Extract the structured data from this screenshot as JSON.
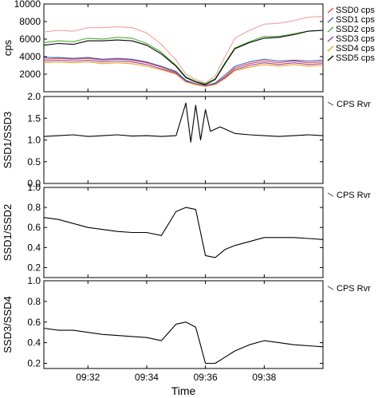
{
  "chart_data": [
    {
      "type": "line",
      "ylabel": "cps",
      "ylim": [
        0,
        10000
      ],
      "yticks": [
        "2000",
        "4000",
        "6000",
        "8000",
        "10000"
      ],
      "xlim": [
        "09:30:30",
        "09:40:00"
      ],
      "grid": false,
      "legend_position": "right",
      "series": [
        {
          "name": "SSD0 cps",
          "color": "#e8453c",
          "x": [
            "09:30:30",
            "09:31:00",
            "09:31:30",
            "09:32:00",
            "09:32:30",
            "09:33:00",
            "09:33:30",
            "09:34:00",
            "09:34:30",
            "09:35:00",
            "09:35:20",
            "09:35:40",
            "09:36:00",
            "09:36:20",
            "09:36:40",
            "09:37:00",
            "09:37:30",
            "09:38:00",
            "09:38:30",
            "09:39:00",
            "09:39:30",
            "09:40:00"
          ],
          "values": [
            3700,
            3800,
            3700,
            3800,
            3600,
            3700,
            3600,
            3300,
            2800,
            2200,
            1200,
            800,
            700,
            900,
            1700,
            2700,
            3200,
            3500,
            3300,
            3500,
            3300,
            3400
          ]
        },
        {
          "name": "SSD1 cps",
          "color": "#3a5fcd",
          "x": [
            "09:30:30",
            "09:31:00",
            "09:31:30",
            "09:32:00",
            "09:32:30",
            "09:33:00",
            "09:33:30",
            "09:34:00",
            "09:34:30",
            "09:35:00",
            "09:35:20",
            "09:35:40",
            "09:36:00",
            "09:36:20",
            "09:36:40",
            "09:37:00",
            "09:37:30",
            "09:38:00",
            "09:38:30",
            "09:39:00",
            "09:39:30",
            "09:40:00"
          ],
          "values": [
            3900,
            3900,
            3800,
            3900,
            3700,
            3800,
            3700,
            3400,
            2900,
            2300,
            1300,
            900,
            700,
            1000,
            1900,
            2900,
            3400,
            3700,
            3500,
            3600,
            3500,
            3600
          ]
        },
        {
          "name": "SSD2 cps",
          "color": "#4caf32",
          "x": [
            "09:30:30",
            "09:31:00",
            "09:31:30",
            "09:32:00",
            "09:32:30",
            "09:33:00",
            "09:33:30",
            "09:34:00",
            "09:34:30",
            "09:35:00",
            "09:35:20",
            "09:35:40",
            "09:36:00",
            "09:36:20",
            "09:36:40",
            "09:37:00",
            "09:37:30",
            "09:38:00",
            "09:38:30",
            "09:39:00",
            "09:39:30",
            "09:40:00"
          ],
          "values": [
            5600,
            5800,
            5700,
            6100,
            6000,
            6200,
            6100,
            5500,
            4500,
            3000,
            1700,
            1200,
            900,
            1500,
            3300,
            5000,
            5700,
            6300,
            6300,
            6600,
            6900,
            7000
          ]
        },
        {
          "name": "SSD3 cps",
          "color": "#8e44ad",
          "x": [
            "09:30:30",
            "09:31:00",
            "09:31:30",
            "09:32:00",
            "09:32:30",
            "09:33:00",
            "09:33:30",
            "09:34:00",
            "09:34:30",
            "09:35:00",
            "09:35:20",
            "09:35:40",
            "09:36:00",
            "09:36:20",
            "09:36:40",
            "09:37:00",
            "09:37:30",
            "09:38:00",
            "09:38:30",
            "09:39:00",
            "09:39:30",
            "09:40:00"
          ],
          "values": [
            3500,
            3600,
            3500,
            3600,
            3400,
            3500,
            3400,
            3100,
            2600,
            2100,
            1200,
            900,
            700,
            900,
            1600,
            2500,
            3000,
            3300,
            3100,
            3300,
            3100,
            3200
          ]
        },
        {
          "name": "SSD4 cps",
          "color": "#f0a020",
          "x": [
            "09:30:30",
            "09:31:00",
            "09:31:30",
            "09:32:00",
            "09:32:30",
            "09:33:00",
            "09:33:30",
            "09:34:00",
            "09:34:30",
            "09:35:00",
            "09:35:20",
            "09:35:40",
            "09:36:00",
            "09:36:20",
            "09:36:40",
            "09:37:00",
            "09:37:30",
            "09:38:00",
            "09:38:30",
            "09:39:00",
            "09:39:30",
            "09:40:00"
          ],
          "values": [
            3300,
            3400,
            3300,
            3400,
            3200,
            3300,
            3200,
            2900,
            2500,
            2000,
            1100,
            800,
            600,
            800,
            1500,
            2400,
            2800,
            3100,
            2900,
            3100,
            2900,
            3000
          ]
        },
        {
          "name": "SSD5 cps",
          "color": "#000000",
          "x": [
            "09:30:30",
            "09:31:00",
            "09:31:30",
            "09:32:00",
            "09:32:30",
            "09:33:00",
            "09:33:30",
            "09:34:00",
            "09:34:30",
            "09:35:00",
            "09:35:20",
            "09:35:40",
            "09:36:00",
            "09:36:20",
            "09:36:40",
            "09:37:00",
            "09:37:30",
            "09:38:00",
            "09:38:30",
            "09:39:00",
            "09:39:30",
            "09:40:00"
          ],
          "values": [
            5300,
            5500,
            5400,
            5800,
            5800,
            5900,
            5800,
            5300,
            4300,
            2900,
            1600,
            1100,
            800,
            1400,
            3200,
            4900,
            5600,
            6100,
            6200,
            6500,
            6900,
            7000
          ]
        },
        {
          "name": "",
          "color": "#f4a0a0",
          "x": [
            "09:30:30",
            "09:31:00",
            "09:31:30",
            "09:32:00",
            "09:32:30",
            "09:33:00",
            "09:33:30",
            "09:34:00",
            "09:34:30",
            "09:35:00",
            "09:35:20",
            "09:35:40",
            "09:36:00",
            "09:36:20",
            "09:36:40",
            "09:37:00",
            "09:37:30",
            "09:38:00",
            "09:38:30",
            "09:39:00",
            "09:39:30",
            "09:40:00"
          ],
          "values": [
            6800,
            7000,
            6900,
            7300,
            7300,
            7400,
            7300,
            6700,
            5400,
            3600,
            2000,
            1400,
            1000,
            1800,
            4000,
            6100,
            7000,
            7700,
            7800,
            8100,
            8500,
            8600
          ]
        }
      ]
    },
    {
      "type": "line",
      "ylabel": "SSD1/SSD3",
      "ylim": [
        0,
        2.0
      ],
      "yticks": [
        "0.0",
        "0.5",
        "1.0",
        "1.5",
        "2.0"
      ],
      "xlim": [
        "09:30:30",
        "09:40:00"
      ],
      "legend_position": "right",
      "series": [
        {
          "name": "CPS Rvr",
          "color": "#000000",
          "x": [
            "09:30:30",
            "09:31:00",
            "09:31:30",
            "09:32:00",
            "09:32:30",
            "09:33:00",
            "09:33:30",
            "09:34:00",
            "09:34:30",
            "09:35:00",
            "09:35:20",
            "09:35:30",
            "09:35:40",
            "09:35:50",
            "09:36:00",
            "09:36:10",
            "09:36:30",
            "09:37:00",
            "09:37:30",
            "09:38:00",
            "09:38:30",
            "09:39:00",
            "09:39:30",
            "09:40:00"
          ],
          "values": [
            1.08,
            1.1,
            1.12,
            1.08,
            1.1,
            1.12,
            1.09,
            1.1,
            1.08,
            1.1,
            1.85,
            0.95,
            1.8,
            1.0,
            1.7,
            1.2,
            1.3,
            1.15,
            1.12,
            1.1,
            1.08,
            1.1,
            1.12,
            1.1
          ]
        }
      ]
    },
    {
      "type": "line",
      "ylabel": "SSD1/SSD2",
      "ylim": [
        0.1,
        1.0
      ],
      "yticks": [
        "0.2",
        "0.4",
        "0.6",
        "0.8",
        "1.0"
      ],
      "xlim": [
        "09:30:30",
        "09:40:00"
      ],
      "legend_position": "right",
      "series": [
        {
          "name": "CPS Rvr",
          "color": "#000000",
          "x": [
            "09:30:30",
            "09:31:00",
            "09:31:30",
            "09:32:00",
            "09:32:30",
            "09:33:00",
            "09:33:30",
            "09:34:00",
            "09:34:30",
            "09:35:00",
            "09:35:20",
            "09:35:40",
            "09:36:00",
            "09:36:20",
            "09:36:40",
            "09:37:00",
            "09:37:30",
            "09:38:00",
            "09:38:30",
            "09:39:00",
            "09:39:30",
            "09:40:00"
          ],
          "values": [
            0.7,
            0.68,
            0.64,
            0.6,
            0.58,
            0.56,
            0.55,
            0.55,
            0.52,
            0.76,
            0.8,
            0.78,
            0.32,
            0.3,
            0.38,
            0.42,
            0.46,
            0.5,
            0.5,
            0.5,
            0.49,
            0.48
          ]
        }
      ]
    },
    {
      "type": "line",
      "ylabel": "SSD3/SSD4",
      "ylim": [
        0.15,
        1.0
      ],
      "yticks": [
        "0.2",
        "0.4",
        "0.6",
        "0.8",
        "1.0"
      ],
      "xlim": [
        "09:30:30",
        "09:40:00"
      ],
      "xlabel": "Time",
      "xticks": [
        "09:32",
        "09:34",
        "09:36",
        "09:38"
      ],
      "legend_position": "right",
      "series": [
        {
          "name": "CPS Rvr",
          "color": "#000000",
          "x": [
            "09:30:30",
            "09:31:00",
            "09:31:30",
            "09:32:00",
            "09:32:30",
            "09:33:00",
            "09:33:30",
            "09:34:00",
            "09:34:30",
            "09:35:00",
            "09:35:20",
            "09:35:40",
            "09:36:00",
            "09:36:20",
            "09:36:40",
            "09:37:00",
            "09:37:30",
            "09:38:00",
            "09:38:30",
            "09:39:00",
            "09:39:30",
            "09:40:00"
          ],
          "values": [
            0.54,
            0.52,
            0.52,
            0.5,
            0.48,
            0.47,
            0.46,
            0.45,
            0.42,
            0.58,
            0.6,
            0.55,
            0.2,
            0.2,
            0.26,
            0.32,
            0.38,
            0.42,
            0.4,
            0.38,
            0.37,
            0.36
          ]
        }
      ]
    }
  ]
}
